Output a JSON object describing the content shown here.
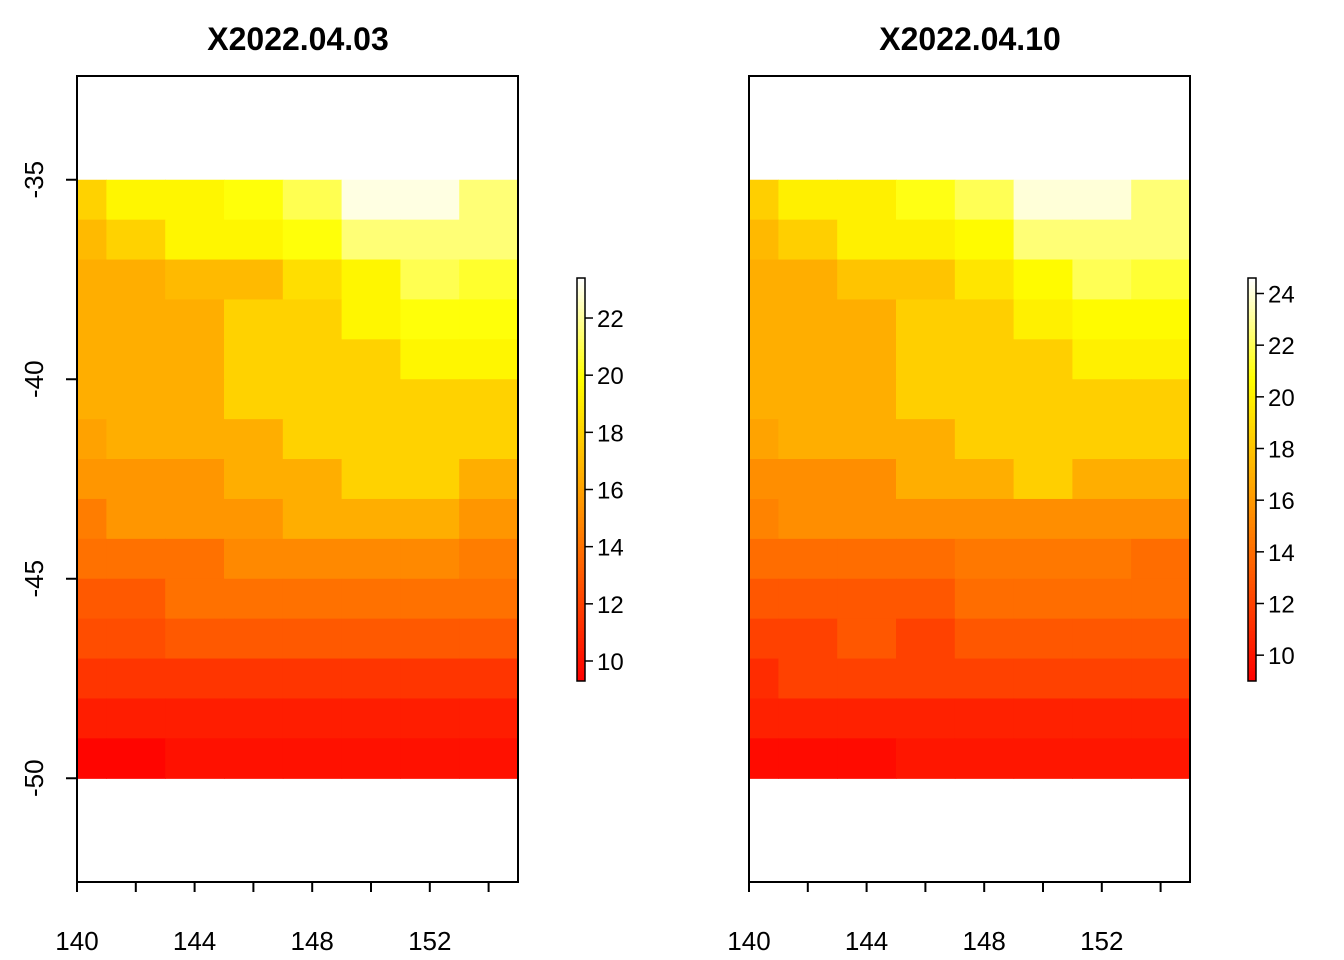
{
  "chart_data": [
    {
      "type": "heatmap",
      "title": "X2022.04.03",
      "xlim": [
        140,
        155
      ],
      "ylim": [
        -52.6,
        -32.4
      ],
      "x_ticks": [
        140,
        144,
        148,
        152
      ],
      "x_tick_labels": [
        "140",
        "144",
        "148",
        "152"
      ],
      "y_ticks": [
        -35,
        -40,
        -45,
        -50
      ],
      "y_tick_labels": [
        "-35",
        "-40",
        "-45",
        "-50"
      ],
      "x_edges": [
        140,
        141,
        143,
        145,
        147,
        149,
        151,
        153,
        155
      ],
      "y_edges": [
        -35,
        -36,
        -37,
        -38,
        -39,
        -40,
        -41,
        -42,
        -43,
        -44,
        -45,
        -46,
        -47,
        -48,
        -49,
        -50
      ],
      "values": [
        [
          18.0,
          19.5,
          19.5,
          20.0,
          21.0,
          23.0,
          23.0,
          21.5
        ],
        [
          17.0,
          18.0,
          19.5,
          19.5,
          20.0,
          21.5,
          21.5,
          21.5
        ],
        [
          16.5,
          16.5,
          17.0,
          17.0,
          18.5,
          19.5,
          21.0,
          20.5
        ],
        [
          16.5,
          16.5,
          16.5,
          18.0,
          18.0,
          19.5,
          20.0,
          20.0
        ],
        [
          16.5,
          16.5,
          16.5,
          18.0,
          18.0,
          18.0,
          19.5,
          19.5
        ],
        [
          16.5,
          16.5,
          16.5,
          18.0,
          18.0,
          18.0,
          18.0,
          18.0
        ],
        [
          16.0,
          16.5,
          16.5,
          16.5,
          18.0,
          18.0,
          18.0,
          18.0
        ],
        [
          15.5,
          15.5,
          15.5,
          16.5,
          16.5,
          18.0,
          18.0,
          16.5
        ],
        [
          14.5,
          15.5,
          15.5,
          15.5,
          16.5,
          16.5,
          16.5,
          15.5
        ],
        [
          14.0,
          14.0,
          14.0,
          15.0,
          15.0,
          15.0,
          15.0,
          14.5
        ],
        [
          13.0,
          13.0,
          14.0,
          14.0,
          14.0,
          14.0,
          14.0,
          14.0
        ],
        [
          12.5,
          12.5,
          13.0,
          13.0,
          13.0,
          13.0,
          13.0,
          13.0
        ],
        [
          11.5,
          11.5,
          11.5,
          11.5,
          11.5,
          11.5,
          11.5,
          11.5
        ],
        [
          10.5,
          10.5,
          10.5,
          10.5,
          10.5,
          10.5,
          10.5,
          10.5
        ],
        [
          9.5,
          9.5,
          10.0,
          10.0,
          10.0,
          10.0,
          10.0,
          10.0
        ]
      ],
      "colorbar": {
        "range": [
          9.3,
          23.4
        ],
        "ticks": [
          10,
          12,
          14,
          16,
          18,
          20,
          22
        ],
        "tick_labels": [
          "10",
          "12",
          "14",
          "16",
          "18",
          "20",
          "22"
        ]
      }
    },
    {
      "type": "heatmap",
      "title": "X2022.04.10",
      "xlim": [
        140,
        155
      ],
      "ylim": [
        -52.6,
        -32.4
      ],
      "x_ticks": [
        140,
        144,
        148,
        152
      ],
      "x_tick_labels": [
        "140",
        "144",
        "148",
        "152"
      ],
      "y_ticks": [],
      "y_tick_labels": [],
      "x_edges": [
        140,
        141,
        143,
        145,
        147,
        149,
        151,
        153,
        155
      ],
      "y_edges": [
        -35,
        -36,
        -37,
        -38,
        -39,
        -40,
        -41,
        -42,
        -43,
        -44,
        -45,
        -46,
        -47,
        -48,
        -49,
        -50
      ],
      "values": [
        [
          18.5,
          20.0,
          20.0,
          21.0,
          22.0,
          24.0,
          24.0,
          22.5
        ],
        [
          17.5,
          18.5,
          20.0,
          20.0,
          20.5,
          22.5,
          22.5,
          22.5
        ],
        [
          17.0,
          17.0,
          18.0,
          18.0,
          19.5,
          20.5,
          22.0,
          21.5
        ],
        [
          17.0,
          17.0,
          17.0,
          18.5,
          18.5,
          20.0,
          20.5,
          20.5
        ],
        [
          17.0,
          17.0,
          17.0,
          18.5,
          18.5,
          18.5,
          20.0,
          20.0
        ],
        [
          17.0,
          17.0,
          17.0,
          18.5,
          18.5,
          18.5,
          18.5,
          18.5
        ],
        [
          16.5,
          17.0,
          17.0,
          17.0,
          18.5,
          18.5,
          18.5,
          18.5
        ],
        [
          15.5,
          15.5,
          15.5,
          17.0,
          17.0,
          18.5,
          17.0,
          17.0
        ],
        [
          15.0,
          15.5,
          15.5,
          15.5,
          15.5,
          15.5,
          15.5,
          15.5
        ],
        [
          14.0,
          14.0,
          14.0,
          14.0,
          14.5,
          14.5,
          14.5,
          14.0
        ],
        [
          13.0,
          13.0,
          13.0,
          13.0,
          14.0,
          14.0,
          14.0,
          14.0
        ],
        [
          12.0,
          12.0,
          13.0,
          12.0,
          13.0,
          13.0,
          13.0,
          13.0
        ],
        [
          11.0,
          12.0,
          12.0,
          12.0,
          12.0,
          12.0,
          12.0,
          12.0
        ],
        [
          10.5,
          10.5,
          10.5,
          10.5,
          10.5,
          10.5,
          10.5,
          10.5
        ],
        [
          9.5,
          9.5,
          9.5,
          10.0,
          10.0,
          10.0,
          10.0,
          10.0
        ]
      ],
      "colorbar": {
        "range": [
          9.0,
          24.6
        ],
        "ticks": [
          10,
          12,
          14,
          16,
          18,
          20,
          22,
          24
        ],
        "tick_labels": [
          "10",
          "12",
          "14",
          "16",
          "18",
          "20",
          "22",
          "24"
        ]
      }
    }
  ]
}
